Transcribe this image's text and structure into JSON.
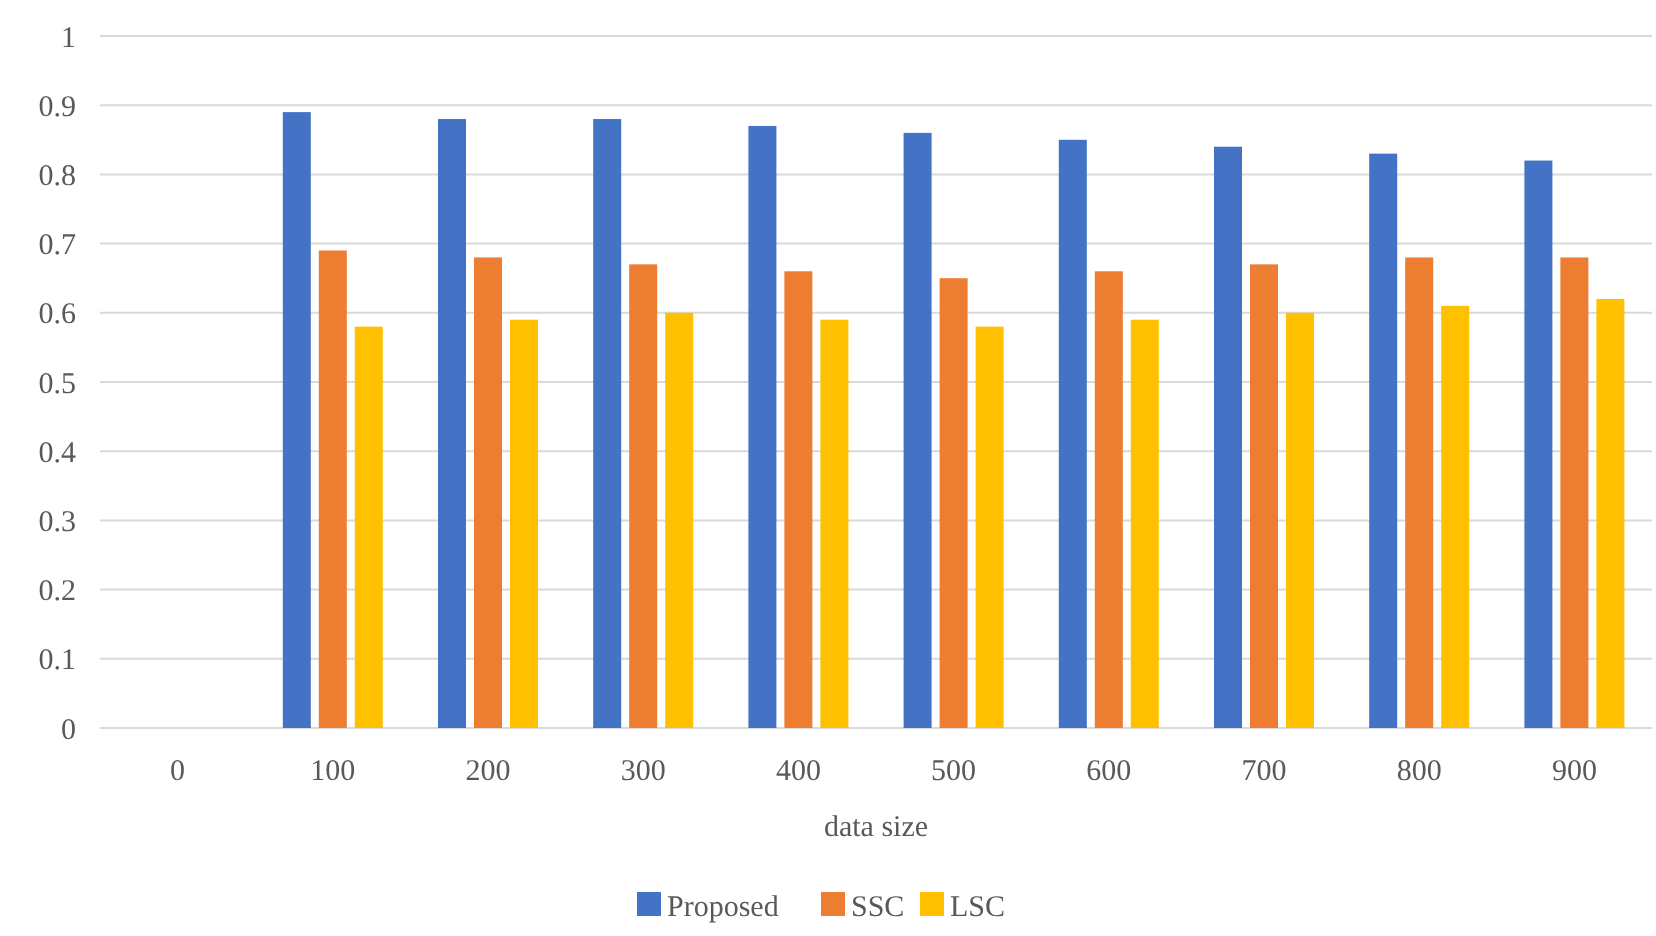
{
  "chart_data": {
    "type": "bar",
    "xlabel": "data size",
    "categories": [
      "0",
      "100",
      "200",
      "300",
      "400",
      "500",
      "600",
      "700",
      "800",
      "900"
    ],
    "series": [
      {
        "name": "Proposed",
        "color": "#4472c4",
        "values": [
          null,
          0.89,
          0.88,
          0.88,
          0.87,
          0.86,
          0.85,
          0.84,
          0.83,
          0.82
        ]
      },
      {
        "name": "SSC",
        "color": "#ed7d31",
        "values": [
          null,
          0.69,
          0.68,
          0.67,
          0.66,
          0.65,
          0.66,
          0.67,
          0.68,
          0.68
        ]
      },
      {
        "name": "LSC",
        "color": "#ffc000",
        "values": [
          null,
          0.58,
          0.59,
          0.6,
          0.59,
          0.58,
          0.59,
          0.6,
          0.61,
          0.62
        ]
      }
    ],
    "ylim": [
      0,
      1
    ],
    "yticks": [
      0,
      0.1,
      0.2,
      0.3,
      0.4,
      0.5,
      0.6,
      0.7,
      0.8,
      0.9,
      1
    ],
    "grid": "y",
    "legend": "bottom"
  }
}
